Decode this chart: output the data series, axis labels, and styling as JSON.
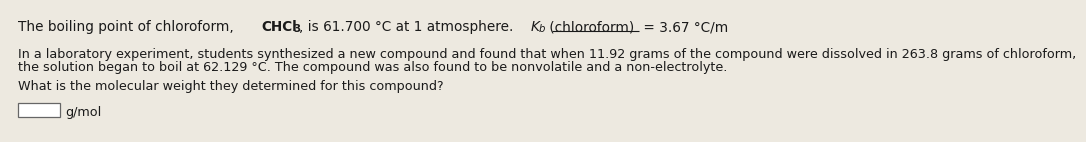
{
  "background_color": "#ede9e0",
  "line1_p1": "The boiling point of chloroform, ",
  "line1_chem": "CHCl",
  "line1_sub3": "3",
  "line1_p2": ", is 61.700 °C at 1 atmosphere. ",
  "line1_K": "K",
  "line1_Ksub": "b",
  "line1_paren": " (chloroform)",
  "line1_end": " = 3.67 °C/m",
  "line2": "In a laboratory experiment, students synthesized a new compound and found that when 11.92 grams of the compound were dissolved in 263.8 grams of chloroform,",
  "line3": "the solution began to boil at 62.129 °C. The compound was also found to be nonvolatile and a non-electrolyte.",
  "line4": "What is the molecular weight they determined for this compound?",
  "line5": "g/mol",
  "text_color": "#1a1a1a",
  "box_color": "#ffffff",
  "box_border": "#666666",
  "fs_main": 9.2,
  "fs_line1": 9.8
}
